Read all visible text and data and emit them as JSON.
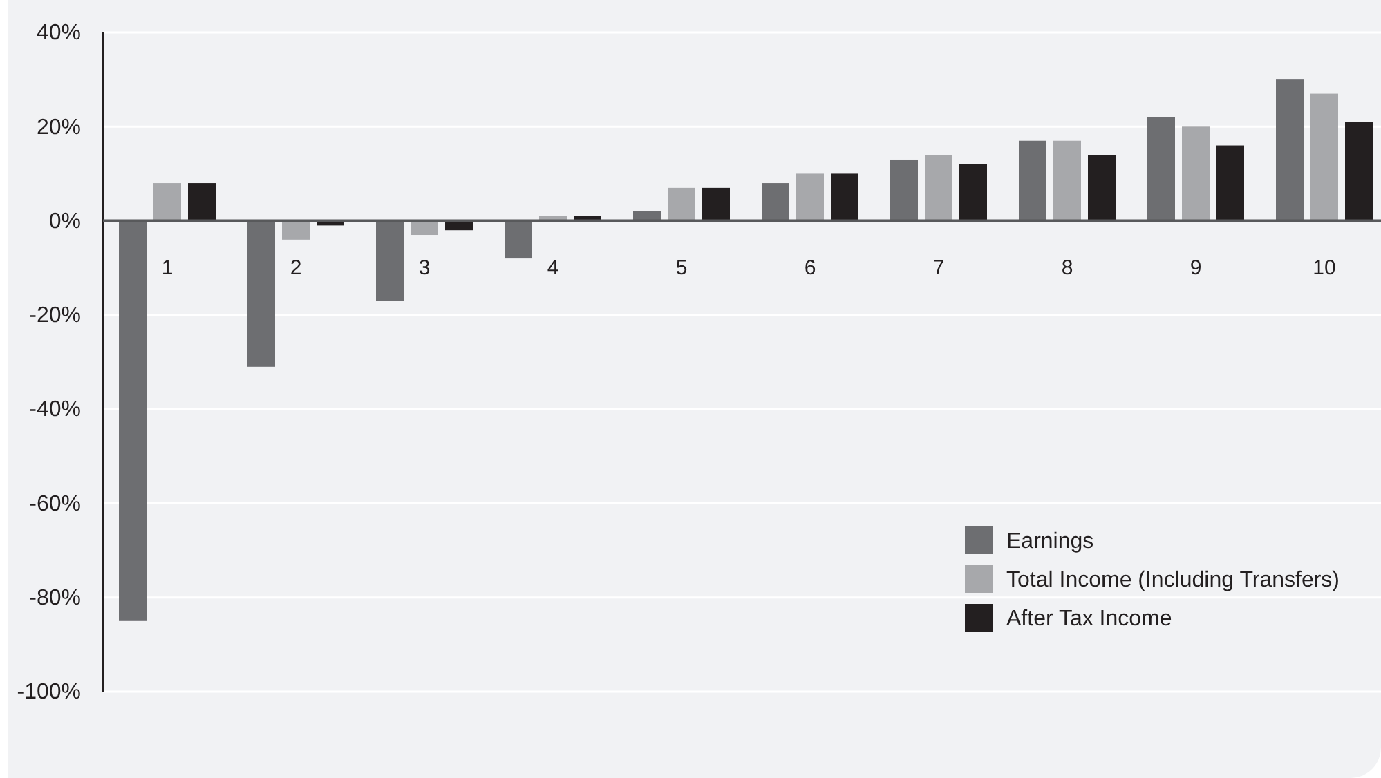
{
  "chart_data": {
    "type": "bar",
    "categories": [
      "1",
      "2",
      "3",
      "4",
      "5",
      "6",
      "7",
      "8",
      "9",
      "10"
    ],
    "series": [
      {
        "name": "Earnings",
        "color": "#6d6e71",
        "values": [
          -85,
          -31,
          -17,
          -8,
          2,
          8,
          13,
          17,
          22,
          30
        ]
      },
      {
        "name": "Total Income (Including Transfers)",
        "color": "#a7a8ab",
        "values": [
          8,
          -4,
          -3,
          1,
          7,
          10,
          14,
          17,
          20,
          27
        ]
      },
      {
        "name": "After Tax Income",
        "color": "#231f20",
        "values": [
          8,
          -1,
          -2,
          1,
          7,
          10,
          12,
          14,
          16,
          21
        ]
      }
    ],
    "ylim": [
      -100,
      40
    ],
    "yticks": [
      {
        "value": -100,
        "label": "-100%"
      },
      {
        "value": -80,
        "label": "-80%"
      },
      {
        "value": -60,
        "label": "-60%"
      },
      {
        "value": -40,
        "label": "-40%"
      },
      {
        "value": -20,
        "label": "-20%"
      },
      {
        "value": 0,
        "label": "0%"
      },
      {
        "value": 20,
        "label": "20%"
      },
      {
        "value": 40,
        "label": "40%"
      }
    ],
    "grid": "y",
    "legend": "bottom right"
  }
}
